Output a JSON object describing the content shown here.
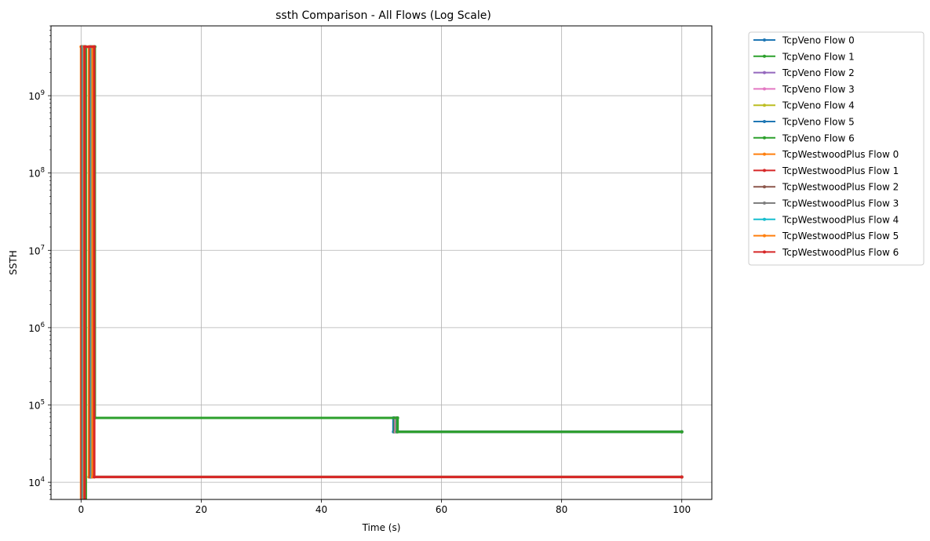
{
  "chart_data": {
    "type": "line",
    "title": "ssth Comparison - All Flows (Log Scale)",
    "xlabel": "Time (s)",
    "ylabel": "SSTH",
    "xlim": [
      -5,
      105
    ],
    "ylim": [
      6000,
      8000000000
    ],
    "yscale": "log",
    "grid": true,
    "legend_position": "outside-right",
    "x_ticks": [
      {
        "value": 0,
        "label": "0"
      },
      {
        "value": 20,
        "label": "20"
      },
      {
        "value": 40,
        "label": "40"
      },
      {
        "value": 60,
        "label": "60"
      },
      {
        "value": 80,
        "label": "80"
      },
      {
        "value": 100,
        "label": "100"
      }
    ],
    "y_ticks": [
      {
        "value": 10000,
        "base": "10",
        "exp": "4"
      },
      {
        "value": 100000,
        "base": "10",
        "exp": "5"
      },
      {
        "value": 1000000,
        "base": "10",
        "exp": "6"
      },
      {
        "value": 10000000,
        "base": "10",
        "exp": "7"
      },
      {
        "value": 100000000,
        "base": "10",
        "exp": "8"
      },
      {
        "value": 1000000000,
        "base": "10",
        "exp": "9"
      }
    ],
    "series": [
      {
        "name": "TcpVeno Flow 0",
        "color": "#1f77b4",
        "points": [
          [
            0.2,
            6000
          ],
          [
            0.2,
            4294967295
          ],
          [
            1.6,
            4294967295
          ],
          [
            1.6,
            68000
          ],
          [
            52.0,
            68000
          ],
          [
            52.0,
            45000
          ],
          [
            100.0,
            45000
          ]
        ]
      },
      {
        "name": "TcpVeno Flow 1",
        "color": "#2ca02c",
        "points": [
          [
            0.3,
            6000
          ],
          [
            0.3,
            4294967295
          ],
          [
            1.8,
            4294967295
          ],
          [
            1.8,
            68000
          ],
          [
            52.2,
            68000
          ],
          [
            52.2,
            45000
          ],
          [
            100.0,
            45000
          ]
        ]
      },
      {
        "name": "TcpVeno Flow 2",
        "color": "#9467bd",
        "points": [
          [
            0.4,
            6000
          ],
          [
            0.4,
            4294967295
          ],
          [
            1.9,
            4294967295
          ],
          [
            1.9,
            68000
          ],
          [
            52.3,
            68000
          ],
          [
            52.3,
            45000
          ],
          [
            100.0,
            45000
          ]
        ]
      },
      {
        "name": "TcpVeno Flow 3",
        "color": "#e377c2",
        "points": [
          [
            0.5,
            6000
          ],
          [
            0.5,
            4294967295
          ],
          [
            2.0,
            4294967295
          ],
          [
            2.0,
            68000
          ],
          [
            52.4,
            68000
          ],
          [
            52.4,
            45000
          ],
          [
            100.0,
            45000
          ]
        ]
      },
      {
        "name": "TcpVeno Flow 4",
        "color": "#bcbd22",
        "points": [
          [
            0.6,
            6000
          ],
          [
            0.6,
            4294967295
          ],
          [
            2.1,
            4294967295
          ],
          [
            2.1,
            68000
          ],
          [
            52.5,
            68000
          ],
          [
            52.5,
            45000
          ],
          [
            100.0,
            45000
          ]
        ]
      },
      {
        "name": "TcpVeno Flow 5",
        "color": "#1f77b4",
        "points": [
          [
            0.7,
            6000
          ],
          [
            0.7,
            4294967295
          ],
          [
            2.2,
            4294967295
          ],
          [
            2.2,
            68000
          ],
          [
            52.6,
            68000
          ],
          [
            52.6,
            45000
          ],
          [
            100.0,
            45000
          ]
        ]
      },
      {
        "name": "TcpVeno Flow 6",
        "color": "#2ca02c",
        "points": [
          [
            0.8,
            6000
          ],
          [
            0.8,
            4294967295
          ],
          [
            2.3,
            4294967295
          ],
          [
            2.3,
            68000
          ],
          [
            52.7,
            68000
          ],
          [
            52.7,
            45000
          ],
          [
            100.0,
            45000
          ]
        ]
      },
      {
        "name": "TcpWestwoodPlus Flow 0",
        "color": "#ff7f0e",
        "points": [
          [
            0.0,
            6000
          ],
          [
            0.0,
            4294967295
          ],
          [
            1.3,
            4294967295
          ],
          [
            1.3,
            11700
          ],
          [
            100.0,
            11700
          ]
        ]
      },
      {
        "name": "TcpWestwoodPlus Flow 1",
        "color": "#d62728",
        "points": [
          [
            0.1,
            6000
          ],
          [
            0.1,
            4294967295
          ],
          [
            1.5,
            4294967295
          ],
          [
            1.5,
            11700
          ],
          [
            100.0,
            11700
          ]
        ]
      },
      {
        "name": "TcpWestwoodPlus Flow 2",
        "color": "#8c564b",
        "points": [
          [
            0.2,
            6000
          ],
          [
            0.2,
            4294967295
          ],
          [
            1.6,
            4294967295
          ],
          [
            1.6,
            11700
          ],
          [
            100.0,
            11700
          ]
        ]
      },
      {
        "name": "TcpWestwoodPlus Flow 3",
        "color": "#7f7f7f",
        "points": [
          [
            0.3,
            6000
          ],
          [
            0.3,
            4294967295
          ],
          [
            1.7,
            4294967295
          ],
          [
            1.7,
            11700
          ],
          [
            100.0,
            11700
          ]
        ]
      },
      {
        "name": "TcpWestwoodPlus Flow 4",
        "color": "#17becf",
        "points": [
          [
            0.4,
            6000
          ],
          [
            0.4,
            4294967295
          ],
          [
            1.8,
            4294967295
          ],
          [
            1.8,
            11700
          ],
          [
            100.0,
            11700
          ]
        ]
      },
      {
        "name": "TcpWestwoodPlus Flow 5",
        "color": "#ff7f0e",
        "points": [
          [
            0.5,
            6000
          ],
          [
            0.5,
            4294967295
          ],
          [
            1.9,
            4294967295
          ],
          [
            1.9,
            11700
          ],
          [
            100.0,
            11700
          ]
        ]
      },
      {
        "name": "TcpWestwoodPlus Flow 6",
        "color": "#d62728",
        "points": [
          [
            0.6,
            6000
          ],
          [
            0.6,
            4294967295
          ],
          [
            2.2,
            4294967295
          ],
          [
            2.2,
            11700
          ],
          [
            100.0,
            11700
          ]
        ]
      }
    ]
  }
}
